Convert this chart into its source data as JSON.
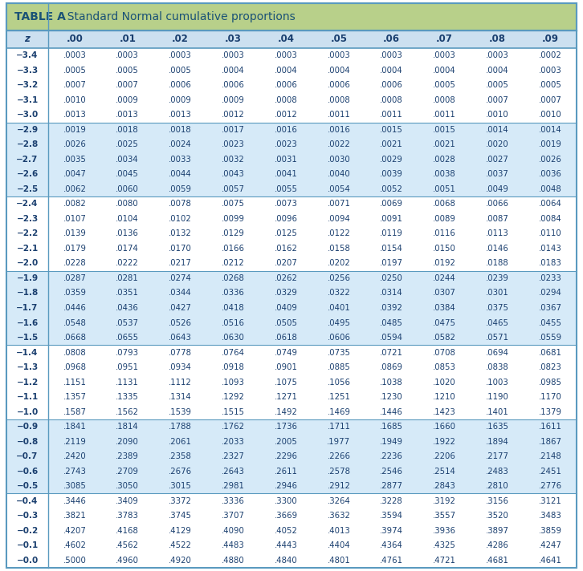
{
  "title_bold": "TABLE A",
  "title_rest": "  Standard Normal cumulative proportions",
  "col_headers": [
    "z",
    ".00",
    ".01",
    ".02",
    ".03",
    ".04",
    ".05",
    ".06",
    ".07",
    ".08",
    ".09"
  ],
  "rows": [
    [
      "-3.4",
      ".0003",
      ".0003",
      ".0003",
      ".0003",
      ".0003",
      ".0003",
      ".0003",
      ".0003",
      ".0003",
      ".0002"
    ],
    [
      "-3.3",
      ".0005",
      ".0005",
      ".0005",
      ".0004",
      ".0004",
      ".0004",
      ".0004",
      ".0004",
      ".0004",
      ".0003"
    ],
    [
      "-3.2",
      ".0007",
      ".0007",
      ".0006",
      ".0006",
      ".0006",
      ".0006",
      ".0006",
      ".0005",
      ".0005",
      ".0005"
    ],
    [
      "-3.1",
      ".0010",
      ".0009",
      ".0009",
      ".0009",
      ".0008",
      ".0008",
      ".0008",
      ".0008",
      ".0007",
      ".0007"
    ],
    [
      "-3.0",
      ".0013",
      ".0013",
      ".0013",
      ".0012",
      ".0012",
      ".0011",
      ".0011",
      ".0011",
      ".0010",
      ".0010"
    ],
    [
      "-2.9",
      ".0019",
      ".0018",
      ".0018",
      ".0017",
      ".0016",
      ".0016",
      ".0015",
      ".0015",
      ".0014",
      ".0014"
    ],
    [
      "-2.8",
      ".0026",
      ".0025",
      ".0024",
      ".0023",
      ".0023",
      ".0022",
      ".0021",
      ".0021",
      ".0020",
      ".0019"
    ],
    [
      "-2.7",
      ".0035",
      ".0034",
      ".0033",
      ".0032",
      ".0031",
      ".0030",
      ".0029",
      ".0028",
      ".0027",
      ".0026"
    ],
    [
      "-2.6",
      ".0047",
      ".0045",
      ".0044",
      ".0043",
      ".0041",
      ".0040",
      ".0039",
      ".0038",
      ".0037",
      ".0036"
    ],
    [
      "-2.5",
      ".0062",
      ".0060",
      ".0059",
      ".0057",
      ".0055",
      ".0054",
      ".0052",
      ".0051",
      ".0049",
      ".0048"
    ],
    [
      "-2.4",
      ".0082",
      ".0080",
      ".0078",
      ".0075",
      ".0073",
      ".0071",
      ".0069",
      ".0068",
      ".0066",
      ".0064"
    ],
    [
      "-2.3",
      ".0107",
      ".0104",
      ".0102",
      ".0099",
      ".0096",
      ".0094",
      ".0091",
      ".0089",
      ".0087",
      ".0084"
    ],
    [
      "-2.2",
      ".0139",
      ".0136",
      ".0132",
      ".0129",
      ".0125",
      ".0122",
      ".0119",
      ".0116",
      ".0113",
      ".0110"
    ],
    [
      "-2.1",
      ".0179",
      ".0174",
      ".0170",
      ".0166",
      ".0162",
      ".0158",
      ".0154",
      ".0150",
      ".0146",
      ".0143"
    ],
    [
      "-2.0",
      ".0228",
      ".0222",
      ".0217",
      ".0212",
      ".0207",
      ".0202",
      ".0197",
      ".0192",
      ".0188",
      ".0183"
    ],
    [
      "-1.9",
      ".0287",
      ".0281",
      ".0274",
      ".0268",
      ".0262",
      ".0256",
      ".0250",
      ".0244",
      ".0239",
      ".0233"
    ],
    [
      "-1.8",
      ".0359",
      ".0351",
      ".0344",
      ".0336",
      ".0329",
      ".0322",
      ".0314",
      ".0307",
      ".0301",
      ".0294"
    ],
    [
      "-1.7",
      ".0446",
      ".0436",
      ".0427",
      ".0418",
      ".0409",
      ".0401",
      ".0392",
      ".0384",
      ".0375",
      ".0367"
    ],
    [
      "-1.6",
      ".0548",
      ".0537",
      ".0526",
      ".0516",
      ".0505",
      ".0495",
      ".0485",
      ".0475",
      ".0465",
      ".0455"
    ],
    [
      "-1.5",
      ".0668",
      ".0655",
      ".0643",
      ".0630",
      ".0618",
      ".0606",
      ".0594",
      ".0582",
      ".0571",
      ".0559"
    ],
    [
      "-1.4",
      ".0808",
      ".0793",
      ".0778",
      ".0764",
      ".0749",
      ".0735",
      ".0721",
      ".0708",
      ".0694",
      ".0681"
    ],
    [
      "-1.3",
      ".0968",
      ".0951",
      ".0934",
      ".0918",
      ".0901",
      ".0885",
      ".0869",
      ".0853",
      ".0838",
      ".0823"
    ],
    [
      "-1.2",
      ".1151",
      ".1131",
      ".1112",
      ".1093",
      ".1075",
      ".1056",
      ".1038",
      ".1020",
      ".1003",
      ".0985"
    ],
    [
      "-1.1",
      ".1357",
      ".1335",
      ".1314",
      ".1292",
      ".1271",
      ".1251",
      ".1230",
      ".1210",
      ".1190",
      ".1170"
    ],
    [
      "-1.0",
      ".1587",
      ".1562",
      ".1539",
      ".1515",
      ".1492",
      ".1469",
      ".1446",
      ".1423",
      ".1401",
      ".1379"
    ],
    [
      "-0.9",
      ".1841",
      ".1814",
      ".1788",
      ".1762",
      ".1736",
      ".1711",
      ".1685",
      ".1660",
      ".1635",
      ".1611"
    ],
    [
      "-0.8",
      ".2119",
      ".2090",
      ".2061",
      ".2033",
      ".2005",
      ".1977",
      ".1949",
      ".1922",
      ".1894",
      ".1867"
    ],
    [
      "-0.7",
      ".2420",
      ".2389",
      ".2358",
      ".2327",
      ".2296",
      ".2266",
      ".2236",
      ".2206",
      ".2177",
      ".2148"
    ],
    [
      "-0.6",
      ".2743",
      ".2709",
      ".2676",
      ".2643",
      ".2611",
      ".2578",
      ".2546",
      ".2514",
      ".2483",
      ".2451"
    ],
    [
      "-0.5",
      ".3085",
      ".3050",
      ".3015",
      ".2981",
      ".2946",
      ".2912",
      ".2877",
      ".2843",
      ".2810",
      ".2776"
    ],
    [
      "-0.4",
      ".3446",
      ".3409",
      ".3372",
      ".3336",
      ".3300",
      ".3264",
      ".3228",
      ".3192",
      ".3156",
      ".3121"
    ],
    [
      "-0.3",
      ".3821",
      ".3783",
      ".3745",
      ".3707",
      ".3669",
      ".3632",
      ".3594",
      ".3557",
      ".3520",
      ".3483"
    ],
    [
      "-0.2",
      ".4207",
      ".4168",
      ".4129",
      ".4090",
      ".4052",
      ".4013",
      ".3974",
      ".3936",
      ".3897",
      ".3859"
    ],
    [
      "-0.1",
      ".4602",
      ".4562",
      ".4522",
      ".4483",
      ".4443",
      ".4404",
      ".4364",
      ".4325",
      ".4286",
      ".4247"
    ],
    [
      "-0.0",
      ".5000",
      ".4960",
      ".4920",
      ".4880",
      ".4840",
      ".4801",
      ".4761",
      ".4721",
      ".4681",
      ".4641"
    ]
  ],
  "group_sizes": [
    5,
    5,
    5,
    5,
    5,
    5,
    5
  ],
  "group_shaded": [
    false,
    true,
    false,
    true,
    false,
    true,
    false
  ],
  "header_bg": "#b8d08a",
  "col_header_bg": "#cce0f0",
  "shaded_row_bg": "#d6eaf8",
  "white_row_bg": "#ffffff",
  "border_color": "#5a9abf",
  "title_color": "#1a5276",
  "data_color": "#1a3f6f",
  "header_text_color": "#1a3f6f",
  "fig_bg": "#ffffff"
}
